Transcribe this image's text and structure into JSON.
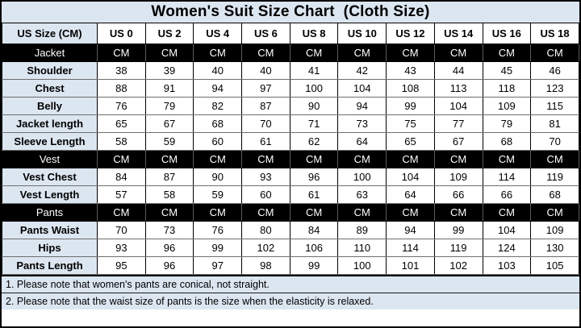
{
  "title": "Women's Suit Size Chart  (Cloth Size)",
  "chart_data": {
    "type": "table",
    "title": "Women's Suit Size Chart  (Cloth Size)",
    "columns": [
      "US Size (CM)",
      "US 0",
      "US 2",
      "US 4",
      "US 6",
      "US 8",
      "US 10",
      "US 12",
      "US 14",
      "US 16",
      "US 18"
    ],
    "unit": "CM",
    "rows": [
      {
        "label": "Jacket",
        "type": "section",
        "values": [
          "CM",
          "CM",
          "CM",
          "CM",
          "CM",
          "CM",
          "CM",
          "CM",
          "CM",
          "CM"
        ]
      },
      {
        "label": "Shoulder",
        "type": "data",
        "values": [
          38,
          39,
          40,
          40,
          41,
          42,
          43,
          44,
          45,
          46
        ]
      },
      {
        "label": "Chest",
        "type": "data",
        "values": [
          88,
          91,
          94,
          97,
          100,
          104,
          108,
          113,
          118,
          123
        ]
      },
      {
        "label": "Belly",
        "type": "data",
        "values": [
          76,
          79,
          82,
          87,
          90,
          94,
          99,
          104,
          109,
          115
        ]
      },
      {
        "label": "Jacket length",
        "type": "data",
        "values": [
          65,
          67,
          68,
          70,
          71,
          73,
          75,
          77,
          79,
          81
        ]
      },
      {
        "label": "Sleeve Length",
        "type": "data",
        "values": [
          58,
          59,
          60,
          61,
          62,
          64,
          65,
          67,
          68,
          70
        ]
      },
      {
        "label": "Vest",
        "type": "section",
        "values": [
          "CM",
          "CM",
          "CM",
          "CM",
          "CM",
          "CM",
          "CM",
          "CM",
          "CM",
          "CM"
        ]
      },
      {
        "label": "Vest Chest",
        "type": "data",
        "values": [
          84,
          87,
          90,
          93,
          96,
          100,
          104,
          109,
          114,
          119
        ]
      },
      {
        "label": "Vest Length",
        "type": "data",
        "values": [
          57,
          58,
          59,
          60,
          61,
          63,
          64,
          66,
          66,
          68
        ]
      },
      {
        "label": "Pants",
        "type": "section",
        "values": [
          "CM",
          "CM",
          "CM",
          "CM",
          "CM",
          "CM",
          "CM",
          "CM",
          "CM",
          "CM"
        ]
      },
      {
        "label": "Pants Waist",
        "type": "data",
        "values": [
          70,
          73,
          76,
          80,
          84,
          89,
          94,
          99,
          104,
          109
        ]
      },
      {
        "label": "Hips",
        "type": "data",
        "values": [
          93,
          96,
          99,
          102,
          106,
          110,
          114,
          119,
          124,
          130
        ]
      },
      {
        "label": "Pants Length",
        "type": "data",
        "values": [
          95,
          96,
          97,
          98,
          99,
          100,
          101,
          102,
          103,
          105
        ]
      }
    ],
    "notes": [
      "1. Please note that women's pants are conical, not straight.",
      "2. Please note that the waist size of pants is the size when the elasticity is relaxed."
    ]
  },
  "colors": {
    "accent_light_blue": "#dce6f1",
    "section_row_bg": "#000000",
    "section_row_text": "#ffffff",
    "grid_border": "#000000",
    "data_cell_bg": "#ffffff",
    "text": "#000000"
  }
}
